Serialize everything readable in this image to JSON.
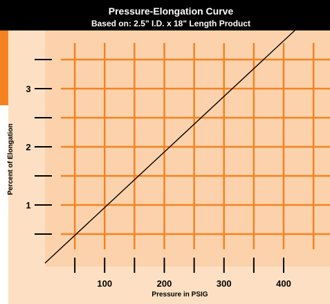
{
  "chart_data": {
    "type": "line",
    "title": "Pressure-Elongation Curve",
    "subtitle": "Based on: 2.5\" I.D. x 18\" Length Product",
    "xlabel": "Pressure in PSIG",
    "ylabel": "Percent of Elongation",
    "x_ticks": [
      {
        "value": 100,
        "label": "100"
      },
      {
        "value": 200,
        "label": "200"
      },
      {
        "value": 300,
        "label": "300"
      },
      {
        "value": 400,
        "label": "400"
      }
    ],
    "y_ticks": [
      {
        "value": 1,
        "label": "1"
      },
      {
        "value": 2,
        "label": "2"
      },
      {
        "value": 3,
        "label": "3"
      }
    ],
    "xlim": [
      0,
      475
    ],
    "ylim": [
      0,
      4.3
    ],
    "grid": true,
    "series": [
      {
        "x": [
          0,
          450
        ],
        "y": [
          0,
          4.3
        ]
      }
    ]
  },
  "colors": {
    "accent": "#f58220",
    "grid": "#f58220",
    "plot_background": "#fbd2ac",
    "label_band": "#fde0c3",
    "header_background": "#000000",
    "header_text": "#ffffff",
    "line": "#000000",
    "tick": "#000000"
  }
}
